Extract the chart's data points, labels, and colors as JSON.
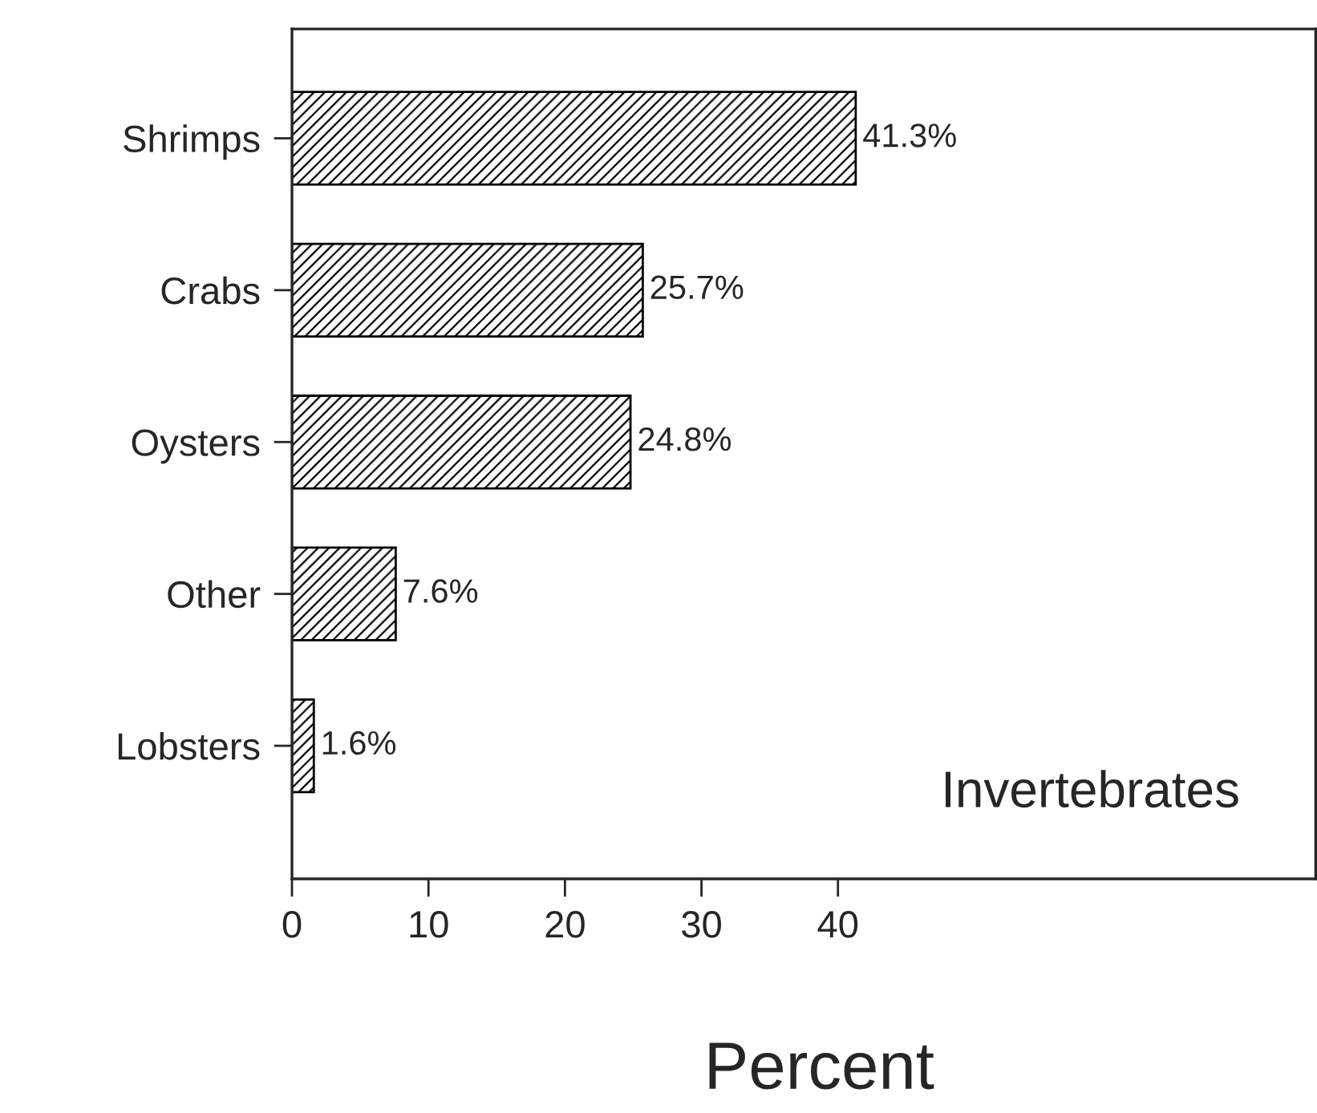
{
  "chart_data": {
    "type": "bar",
    "orientation": "horizontal",
    "xlabel": "Percent",
    "categories": [
      "Shrimps",
      "Crabs",
      "Oysters",
      "Other",
      "Lobsters"
    ],
    "values": [
      41.3,
      25.7,
      24.8,
      7.6,
      1.6
    ],
    "value_labels": [
      "41.3%",
      "25.7%",
      "24.8%",
      "7.6%",
      "1.6%"
    ],
    "color": "#000000",
    "xlim": [
      0,
      75
    ],
    "xticks": [
      0,
      10,
      20,
      30,
      40
    ],
    "grid": false,
    "annotations": [
      "Invertebrates"
    ]
  }
}
